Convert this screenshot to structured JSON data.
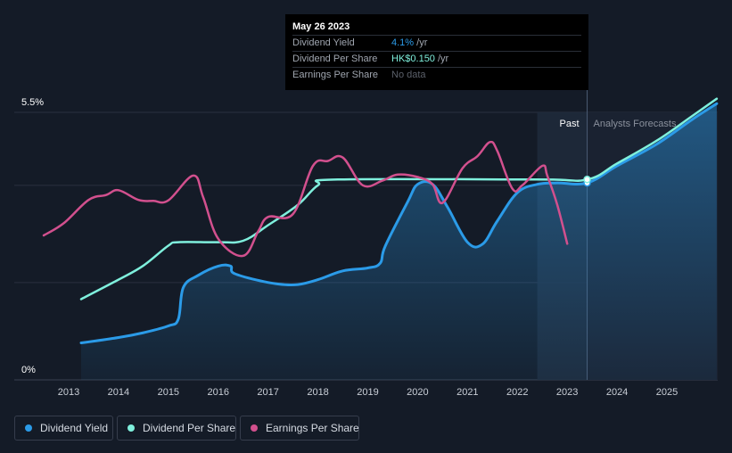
{
  "tooltip": {
    "date": "May 26 2023",
    "rows": [
      {
        "label": "Dividend Yield",
        "value": "4.1%",
        "unit": " /yr"
      },
      {
        "label": "Dividend Per Share",
        "value": "HK$0.150",
        "unit": " /yr"
      },
      {
        "label": "Earnings Per Share",
        "value": "No data"
      }
    ]
  },
  "legend": [
    {
      "label": "Dividend Yield",
      "color": "#2b9be8"
    },
    {
      "label": "Dividend Per Share",
      "color": "#7ff0dd"
    },
    {
      "label": "Earnings Per Share",
      "color": "#d2508e"
    }
  ],
  "colors": {
    "background": "#141b27",
    "yield": "#2b9be8",
    "dps": "#7ff0dd",
    "eps": "#d2508e",
    "grid": "#2a3140"
  },
  "chart_data": {
    "type": "line",
    "title": "",
    "xlabel": "",
    "ylabel": "",
    "x_ticks": [
      "2013",
      "2014",
      "2015",
      "2016",
      "2017",
      "2018",
      "2019",
      "2020",
      "2021",
      "2022",
      "2023",
      "2024",
      "2025"
    ],
    "xlim": [
      2012.0,
      2026.0
    ],
    "y_tick_labels": [
      "5.5%",
      "0%"
    ],
    "ylim": [
      0,
      5.5
    ],
    "regions": {
      "past_label": "Past",
      "forecast_label": "Analysts Forecasts",
      "split_x": 2023.4,
      "highlight_start": 2022.4
    },
    "series": [
      {
        "name": "Dividend Yield",
        "unit": "%",
        "points": [
          [
            2013.25,
            0.76
          ],
          [
            2014.0,
            0.87
          ],
          [
            2014.5,
            0.97
          ],
          [
            2015.0,
            1.11
          ],
          [
            2015.2,
            1.25
          ],
          [
            2015.3,
            1.9
          ],
          [
            2015.6,
            2.15
          ],
          [
            2016.0,
            2.34
          ],
          [
            2016.25,
            2.34
          ],
          [
            2016.3,
            2.2
          ],
          [
            2016.7,
            2.07
          ],
          [
            2017.2,
            1.97
          ],
          [
            2017.6,
            1.96
          ],
          [
            2018.0,
            2.06
          ],
          [
            2018.5,
            2.24
          ],
          [
            2019.0,
            2.3
          ],
          [
            2019.25,
            2.4
          ],
          [
            2019.35,
            2.75
          ],
          [
            2019.8,
            3.66
          ],
          [
            2020.0,
            4.02
          ],
          [
            2020.3,
            4.02
          ],
          [
            2020.6,
            3.55
          ],
          [
            2021.0,
            2.83
          ],
          [
            2021.3,
            2.79
          ],
          [
            2021.6,
            3.27
          ],
          [
            2022.0,
            3.85
          ],
          [
            2022.4,
            4.02
          ],
          [
            2022.8,
            4.05
          ],
          [
            2023.4,
            4.05
          ],
          [
            2024.0,
            4.4
          ],
          [
            2024.8,
            4.85
          ],
          [
            2025.5,
            5.35
          ],
          [
            2026.0,
            5.68
          ]
        ]
      },
      {
        "name": "Dividend Per Share",
        "unit": "HK$",
        "points": [
          [
            2013.25,
            1.66
          ],
          [
            2014.0,
            2.06
          ],
          [
            2014.5,
            2.35
          ],
          [
            2015.0,
            2.76
          ],
          [
            2015.2,
            2.83
          ],
          [
            2016.0,
            2.83
          ],
          [
            2016.5,
            2.86
          ],
          [
            2017.0,
            3.18
          ],
          [
            2017.6,
            3.6
          ],
          [
            2018.0,
            4.0
          ],
          [
            2018.4,
            4.12
          ],
          [
            2022.4,
            4.12
          ],
          [
            2023.4,
            4.12
          ],
          [
            2024.0,
            4.45
          ],
          [
            2024.8,
            4.92
          ],
          [
            2025.5,
            5.42
          ],
          [
            2026.0,
            5.78
          ]
        ]
      },
      {
        "name": "Earnings Per Share",
        "unit": "HK$",
        "points": [
          [
            2012.5,
            2.97
          ],
          [
            2012.9,
            3.22
          ],
          [
            2013.4,
            3.7
          ],
          [
            2013.75,
            3.8
          ],
          [
            2014.0,
            3.9
          ],
          [
            2014.4,
            3.7
          ],
          [
            2014.7,
            3.68
          ],
          [
            2015.0,
            3.69
          ],
          [
            2015.5,
            4.2
          ],
          [
            2015.7,
            3.75
          ],
          [
            2016.0,
            2.9
          ],
          [
            2016.5,
            2.55
          ],
          [
            2016.8,
            3.05
          ],
          [
            2017.0,
            3.35
          ],
          [
            2017.5,
            3.41
          ],
          [
            2017.9,
            4.4
          ],
          [
            2018.2,
            4.5
          ],
          [
            2018.5,
            4.57
          ],
          [
            2018.9,
            4.0
          ],
          [
            2019.3,
            4.1
          ],
          [
            2019.6,
            4.22
          ],
          [
            2020.0,
            4.17
          ],
          [
            2020.3,
            4.02
          ],
          [
            2020.5,
            3.64
          ],
          [
            2020.9,
            4.35
          ],
          [
            2021.2,
            4.6
          ],
          [
            2021.45,
            4.89
          ],
          [
            2021.6,
            4.7
          ],
          [
            2021.9,
            3.93
          ],
          [
            2022.1,
            4.0
          ],
          [
            2022.5,
            4.4
          ],
          [
            2022.6,
            4.2
          ],
          [
            2022.8,
            3.6
          ],
          [
            2023.0,
            2.8
          ]
        ]
      }
    ],
    "markers": [
      {
        "series": "Dividend Yield",
        "x": 2023.4,
        "y": 4.05
      },
      {
        "series": "Dividend Per Share",
        "x": 2023.4,
        "y": 4.12
      }
    ]
  }
}
